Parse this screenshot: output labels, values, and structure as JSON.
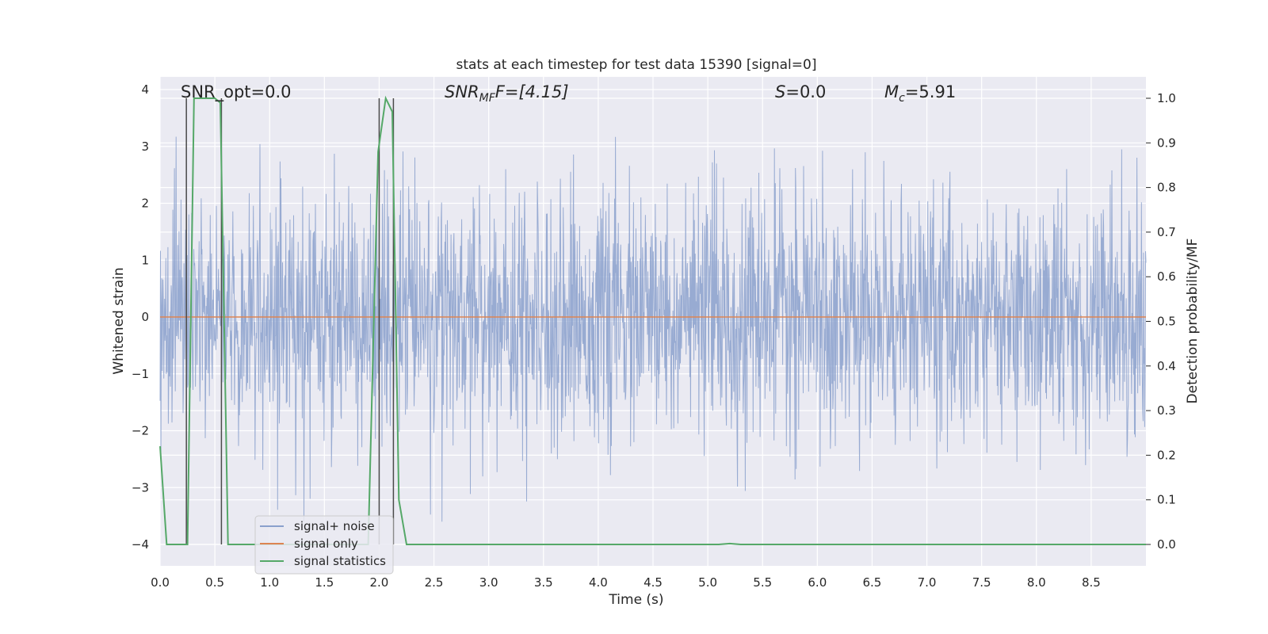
{
  "chart_data": {
    "type": "line",
    "title": "stats at each timestep for test data 15390 [signal=0]",
    "xlabel": "Time (s)",
    "ylabel": "Whitened strain",
    "y2label": "Detection probability/MF",
    "xlim": [
      0,
      9.0
    ],
    "ylim": [
      -4.4,
      4.2
    ],
    "y2lim": [
      -0.05,
      1.04
    ],
    "xticks": [
      "0.0",
      "0.5",
      "1.0",
      "1.5",
      "2.0",
      "2.5",
      "3.0",
      "3.5",
      "4.0",
      "4.5",
      "5.0",
      "5.5",
      "6.0",
      "6.5",
      "7.0",
      "7.5",
      "8.0",
      "8.5"
    ],
    "yticks": [
      "4",
      "3",
      "2",
      "1",
      "0",
      "−1",
      "−2",
      "−3",
      "−4"
    ],
    "y2ticks": [
      "1.0",
      "0.9",
      "0.8",
      "0.7",
      "0.6",
      "0.5",
      "0.4",
      "0.3",
      "0.2",
      "0.1",
      "0.0"
    ],
    "grid": true,
    "legend_position": "lower-left",
    "annotations": {
      "snr_opt": "SNR_opt=0.0",
      "snr_mf_prefix": "SNR",
      "snr_mf_sub": "MF",
      "snr_mf_suffix": "F=[4.15]",
      "s_prefix": "S",
      "s_suffix": "=0.0",
      "mc_prefix": "M",
      "mc_sub": "c",
      "mc_suffix": "=5.91"
    },
    "series": [
      {
        "name": "signal+ noise",
        "color": "#8aa0cc",
        "axis": "left",
        "description_values": "noise in whitened strain, approx. within [-3.6, 3.9]",
        "amplitude_envelope": [
          1.5,
          2.3,
          3.9
        ]
      },
      {
        "name": "signal only",
        "color": "#dd8452",
        "axis": "left",
        "x": [
          0,
          9.0
        ],
        "y": [
          0,
          0
        ]
      },
      {
        "name": "signal statistics",
        "color": "#55a868",
        "axis": "right",
        "x": [
          0.0,
          0.06,
          0.25,
          0.31,
          0.5,
          0.55,
          0.62,
          1.9,
          1.99,
          2.06,
          2.12,
          2.18,
          2.25,
          2.3,
          5.1,
          5.2,
          5.3,
          9.0
        ],
        "y": [
          0.22,
          0.0,
          0.0,
          1.0,
          1.0,
          0.99,
          0.0,
          0.0,
          0.88,
          1.0,
          0.97,
          0.1,
          0.0,
          0.0,
          0.0,
          0.002,
          0.0,
          0.0
        ]
      }
    ],
    "markers": {
      "color": "#4a4a4a",
      "vertical_lines": [
        0.24,
        0.56,
        2.0,
        2.13
      ]
    }
  },
  "legend": {
    "items": [
      {
        "label": "signal+ noise",
        "color": "#8aa0cc"
      },
      {
        "label": "signal only",
        "color": "#dd8452"
      },
      {
        "label": "signal statistics",
        "color": "#55a868"
      }
    ]
  },
  "colors": {
    "plot_background": "#eaeaf2",
    "grid": "#ffffff"
  }
}
